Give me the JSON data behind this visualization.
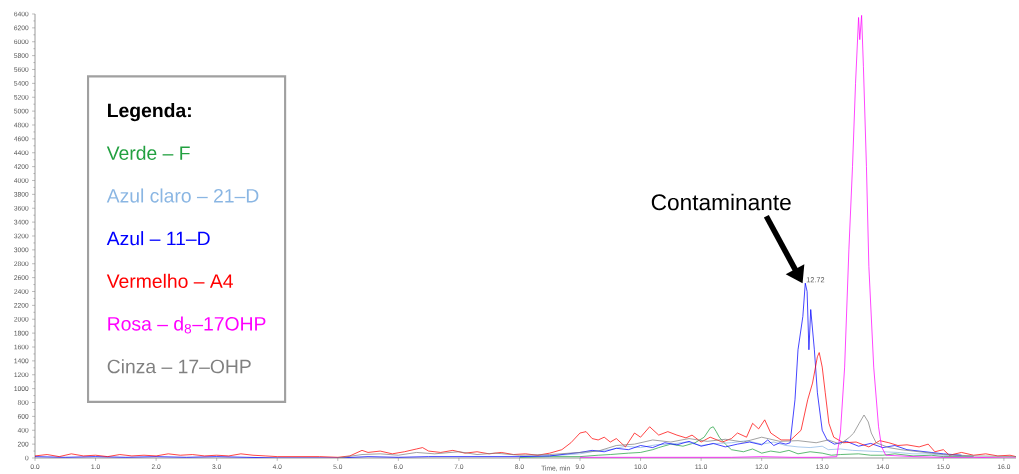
{
  "chart_data": {
    "type": "line",
    "xlabel": "Time, min",
    "legend_title": "Legenda:",
    "legend": "left",
    "xlim": [
      0,
      16.2
    ],
    "ylim": [
      0,
      6400
    ],
    "xticks": [
      {
        "value": 0,
        "label": "0.0"
      },
      {
        "value": 1,
        "label": "1.0"
      },
      {
        "value": 2,
        "label": "2.0"
      },
      {
        "value": 3,
        "label": "3.0"
      },
      {
        "value": 4,
        "label": "4.0"
      },
      {
        "value": 5,
        "label": "5.0"
      },
      {
        "value": 6,
        "label": "6.0"
      },
      {
        "value": 7,
        "label": "7.0"
      },
      {
        "value": 8,
        "label": "8.0"
      },
      {
        "value": 9,
        "label": "9.0"
      },
      {
        "value": 10,
        "label": "10.0"
      },
      {
        "value": 11,
        "label": "11.0"
      },
      {
        "value": 12,
        "label": "12.0"
      },
      {
        "value": 13,
        "label": "13.0"
      },
      {
        "value": 14,
        "label": "14.0"
      },
      {
        "value": 15,
        "label": "15.0"
      },
      {
        "value": 16,
        "label": "16.0"
      }
    ],
    "yticks": [
      0,
      200,
      400,
      600,
      800,
      1000,
      1200,
      1400,
      1600,
      1800,
      2000,
      2200,
      2400,
      2600,
      2800,
      3000,
      3200,
      3400,
      3600,
      3800,
      4000,
      4200,
      4400,
      4600,
      4800,
      5000,
      5200,
      5400,
      5600,
      5800,
      6000,
      6200,
      6400
    ],
    "annotations": [
      "Contaminante",
      {
        "text": "12.72",
        "x": 12.72,
        "y": 2520
      }
    ],
    "series": [
      {
        "name": "Verde – F",
        "color": "#22a040",
        "x": [
          8.0,
          8.5,
          9.0,
          9.3,
          9.5,
          9.8,
          10.0,
          10.2,
          10.3,
          10.5,
          10.7,
          10.9,
          11.05,
          11.15,
          11.2,
          11.25,
          11.3,
          11.4,
          11.5,
          11.7,
          11.85,
          12.0,
          12.15,
          12.3,
          12.45,
          12.6,
          12.8,
          13.0,
          13.15,
          13.3,
          13.6,
          13.8,
          14.0,
          14.2,
          14.5,
          14.8,
          15.0,
          15.5
        ],
        "values": [
          10,
          20,
          20,
          40,
          50,
          70,
          80,
          120,
          150,
          200,
          170,
          220,
          300,
          430,
          450,
          380,
          300,
          200,
          120,
          90,
          130,
          70,
          100,
          80,
          110,
          60,
          90,
          70,
          40,
          50,
          60,
          40,
          40,
          60,
          30,
          40,
          20,
          20
        ]
      },
      {
        "name": "Azul claro – 21–D",
        "color": "#8ab6e3",
        "x": [
          8,
          8.5,
          9.0,
          9.25,
          9.5,
          9.75,
          10.0,
          10.25,
          10.5,
          10.75,
          11.0,
          11.25,
          11.5,
          11.75,
          12.0,
          12.2,
          12.4,
          12.6,
          12.8,
          13.0,
          13.1,
          13.3,
          13.5,
          13.75,
          14.0,
          14.25,
          14.5,
          14.75,
          15,
          15.5
        ],
        "values": [
          20,
          30,
          60,
          100,
          120,
          170,
          150,
          190,
          200,
          230,
          180,
          210,
          220,
          250,
          200,
          230,
          180,
          160,
          150,
          170,
          120,
          130,
          110,
          100,
          90,
          80,
          60,
          60,
          40,
          30
        ]
      },
      {
        "name": "Azul – 11–D",
        "color": "#0000ff",
        "x": [
          0,
          0.5,
          1.0,
          1.5,
          2.0,
          2.5,
          3.0,
          3.5,
          4.0,
          4.5,
          5.0,
          5.5,
          6.0,
          6.5,
          7.0,
          7.5,
          8.0,
          8.5,
          8.8,
          9.0,
          9.2,
          9.4,
          9.6,
          9.8,
          10.0,
          10.2,
          10.4,
          10.6,
          10.8,
          11.0,
          11.2,
          11.4,
          11.6,
          11.8,
          12.0,
          12.1,
          12.2,
          12.3,
          12.4,
          12.47,
          12.55,
          12.6,
          12.68,
          12.72,
          12.75,
          12.78,
          12.81,
          12.87,
          12.92,
          13.0,
          13.08,
          13.2,
          13.4,
          13.6,
          13.8,
          14.0,
          14.2,
          14.4,
          14.6,
          14.8,
          15.0,
          15.3
        ],
        "values": [
          20,
          10,
          20,
          10,
          20,
          10,
          20,
          10,
          0,
          0,
          0,
          20,
          10,
          20,
          20,
          20,
          20,
          30,
          60,
          80,
          110,
          90,
          140,
          120,
          180,
          150,
          220,
          190,
          240,
          170,
          210,
          160,
          200,
          230,
          190,
          260,
          180,
          220,
          200,
          220,
          840,
          1560,
          2040,
          2520,
          2400,
          1560,
          2140,
          1560,
          940,
          400,
          260,
          200,
          240,
          170,
          210,
          150,
          180,
          120,
          100,
          80,
          60,
          40
        ]
      },
      {
        "name": "Vermelho – A4",
        "color": "#ff0000",
        "x": [
          0,
          0.2,
          0.4,
          0.6,
          0.8,
          1.0,
          1.2,
          1.4,
          1.6,
          1.8,
          2.0,
          2.2,
          2.4,
          2.6,
          2.8,
          3.0,
          3.2,
          3.4,
          3.6,
          3.8,
          4.0,
          4.3,
          4.7,
          5.0,
          5.2,
          5.4,
          5.5,
          5.7,
          5.9,
          6.1,
          6.3,
          6.4,
          6.5,
          6.7,
          6.9,
          7.1,
          7.3,
          7.5,
          7.7,
          7.9,
          8.1,
          8.3,
          8.5,
          8.7,
          8.85,
          9.0,
          9.1,
          9.2,
          9.3,
          9.4,
          9.5,
          9.6,
          9.75,
          9.9,
          10.0,
          10.15,
          10.3,
          10.45,
          10.6,
          10.75,
          10.85,
          11.0,
          11.15,
          11.35,
          11.5,
          11.6,
          11.75,
          11.85,
          11.95,
          12.05,
          12.15,
          12.32,
          12.48,
          12.65,
          12.76,
          12.84,
          12.92,
          12.95,
          13.0,
          13.05,
          13.11,
          13.19,
          13.35,
          13.56,
          13.77,
          13.95,
          14.1,
          14.25,
          14.4,
          14.6,
          14.75,
          14.86,
          15.0,
          15.1,
          15.3,
          15.5,
          15.7,
          15.9,
          16.1,
          16.2
        ],
        "values": [
          30,
          50,
          20,
          60,
          30,
          40,
          20,
          50,
          30,
          40,
          30,
          60,
          40,
          50,
          30,
          40,
          30,
          60,
          40,
          30,
          20,
          20,
          20,
          10,
          30,
          110,
          80,
          100,
          60,
          90,
          130,
          150,
          100,
          80,
          110,
          70,
          90,
          60,
          80,
          50,
          60,
          40,
          70,
          120,
          220,
          360,
          380,
          280,
          260,
          300,
          230,
          280,
          160,
          360,
          300,
          450,
          330,
          380,
          330,
          290,
          330,
          230,
          300,
          230,
          280,
          360,
          300,
          500,
          420,
          550,
          360,
          260,
          260,
          400,
          840,
          1080,
          1460,
          1520,
          1310,
          940,
          500,
          300,
          220,
          230,
          160,
          250,
          220,
          180,
          190,
          160,
          200,
          90,
          120,
          40,
          80,
          40,
          60,
          30,
          40,
          20
        ]
      },
      {
        "name": "Rosa – d$_{8}$–17OHP",
        "color": "#ff00ff",
        "x": [
          9,
          9.5,
          10,
          10.5,
          11,
          11.5,
          12,
          12.5,
          13.0,
          13.24,
          13.3,
          13.37,
          13.44,
          13.5,
          13.55,
          13.6,
          13.62,
          13.65,
          13.68,
          13.73,
          13.77,
          13.85,
          13.93,
          13.98,
          14.05,
          14.5,
          15,
          15.5,
          16,
          16.2
        ],
        "values": [
          10,
          10,
          10,
          10,
          10,
          10,
          20,
          10,
          10,
          20,
          360,
          1310,
          3000,
          4200,
          5400,
          6350,
          6030,
          6380,
          5640,
          4200,
          2760,
          1310,
          450,
          160,
          40,
          20,
          10,
          10,
          0,
          0
        ]
      },
      {
        "name": "Cinza – 17–OHP",
        "color": "#808080",
        "x": [
          5,
          5.4,
          5.7,
          6.0,
          6.3,
          6.6,
          7.0,
          7.3,
          7.6,
          8.0,
          8.5,
          9.0,
          9.3,
          9.6,
          9.9,
          10.2,
          10.5,
          10.8,
          11.1,
          11.4,
          11.7,
          12.0,
          12.3,
          12.6,
          12.9,
          13.1,
          13.3,
          13.45,
          13.52,
          13.61,
          13.69,
          13.76,
          13.81,
          13.89,
          14.1,
          14.3,
          14.5,
          14.8,
          15.0,
          15.5,
          16.2
        ],
        "values": [
          0,
          50,
          60,
          40,
          80,
          60,
          90,
          50,
          70,
          40,
          50,
          80,
          100,
          180,
          200,
          260,
          230,
          280,
          240,
          270,
          230,
          300,
          240,
          250,
          220,
          260,
          200,
          300,
          360,
          500,
          620,
          520,
          360,
          220,
          150,
          120,
          100,
          70,
          50,
          30,
          20
        ]
      }
    ]
  }
}
